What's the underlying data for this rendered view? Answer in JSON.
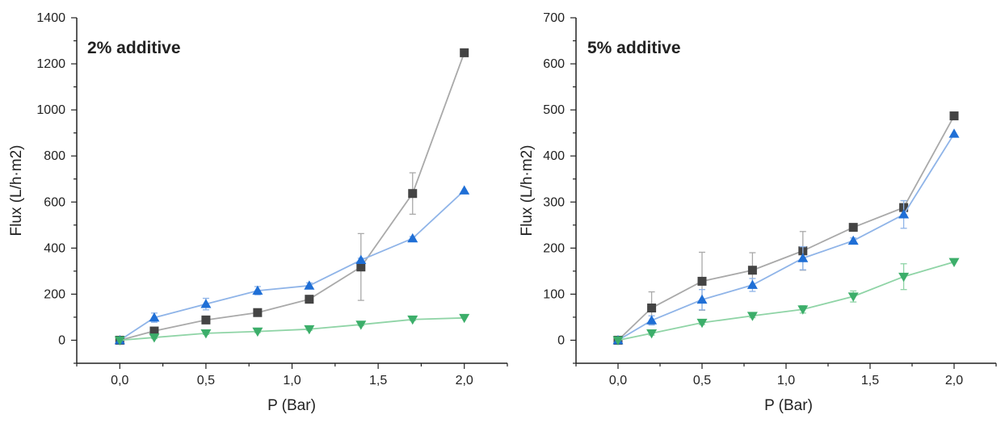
{
  "chart_data": [
    {
      "type": "line",
      "annotation": "2% additive",
      "xlabel": "P (Bar)",
      "ylabel": "Flux (L/h·m2)",
      "xlim": [
        -0.25,
        2.25
      ],
      "ylim": [
        -100,
        1400
      ],
      "x_ticks": [
        "0,0",
        "0,5",
        "1,0",
        "1,5",
        "2,0"
      ],
      "x_tick_values": [
        0,
        0.5,
        1.0,
        1.5,
        2.0
      ],
      "y_ticks": [
        "0",
        "200",
        "400",
        "600",
        "800",
        "1000",
        "1200",
        "1400"
      ],
      "y_tick_values": [
        0,
        200,
        400,
        600,
        800,
        1000,
        1200,
        1400
      ],
      "x": [
        0,
        0.2,
        0.5,
        0.8,
        1.1,
        1.4,
        1.7,
        2.0
      ],
      "grid": false,
      "legend": "none",
      "series": [
        {
          "marker": "square",
          "color": "#444444",
          "line_color": "#a9a9a9",
          "values": [
            0,
            40,
            88,
            120,
            178,
            318,
            637,
            1248
          ],
          "error": [
            0,
            8,
            10,
            10,
            10,
            145,
            90,
            0
          ]
        },
        {
          "marker": "triangle-up",
          "color": "#1f6fd6",
          "line_color": "#8fb4e8",
          "values": [
            0,
            98,
            157,
            215,
            237,
            348,
            442,
            650
          ],
          "error": [
            0,
            20,
            25,
            18,
            12,
            8,
            8,
            0
          ]
        },
        {
          "marker": "triangle-down",
          "color": "#3cae6a",
          "line_color": "#8fd4a6",
          "values": [
            0,
            12,
            30,
            38,
            48,
            68,
            90,
            97
          ],
          "error": [
            0,
            5,
            5,
            5,
            5,
            5,
            5,
            0
          ]
        }
      ]
    },
    {
      "type": "line",
      "annotation": "5% additive",
      "xlabel": "P (Bar)",
      "ylabel": "Flux (L/h·m2)",
      "xlim": [
        -0.25,
        2.25
      ],
      "ylim": [
        -50,
        700
      ],
      "x_ticks": [
        "0,0",
        "0,5",
        "1,0",
        "1,5",
        "2,0"
      ],
      "x_tick_values": [
        0,
        0.5,
        1.0,
        1.5,
        2.0
      ],
      "y_ticks": [
        "0",
        "100",
        "200",
        "300",
        "400",
        "500",
        "600",
        "700"
      ],
      "y_tick_values": [
        0,
        100,
        200,
        300,
        400,
        500,
        600,
        700
      ],
      "x": [
        0,
        0.2,
        0.5,
        0.8,
        1.1,
        1.4,
        1.7,
        2.0
      ],
      "grid": false,
      "legend": "none",
      "series": [
        {
          "marker": "square",
          "color": "#444444",
          "line_color": "#a9a9a9",
          "values": [
            0,
            70,
            128,
            152,
            194,
            245,
            288,
            487
          ],
          "error": [
            0,
            35,
            63,
            38,
            42,
            8,
            15,
            0
          ]
        },
        {
          "marker": "triangle-up",
          "color": "#1f6fd6",
          "line_color": "#8fb4e8",
          "values": [
            0,
            43,
            88,
            120,
            178,
            216,
            273,
            448
          ],
          "error": [
            0,
            10,
            22,
            14,
            25,
            6,
            30,
            0
          ]
        },
        {
          "marker": "triangle-down",
          "color": "#3cae6a",
          "line_color": "#8fd4a6",
          "values": [
            0,
            15,
            38,
            53,
            67,
            95,
            138,
            170
          ],
          "error": [
            0,
            4,
            4,
            4,
            8,
            12,
            28,
            0
          ]
        }
      ]
    }
  ]
}
